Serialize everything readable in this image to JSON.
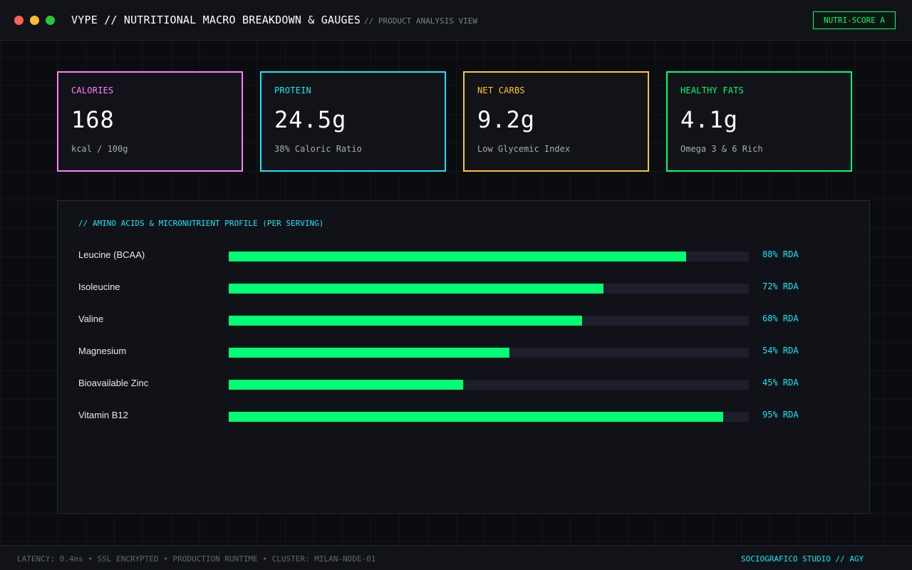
{
  "window": {
    "title": "VYPE // NUTRITIONAL MACRO BREAKDOWN & GAUGES",
    "subtitle": "// PRODUCT ANALYSIS VIEW",
    "badge": "NUTRI-SCORE A",
    "controls": [
      "close-icon",
      "minimize-icon",
      "maximize-icon"
    ]
  },
  "colors": {
    "calories": "#ff80ff",
    "protein": "#18e8f4",
    "net_carbs": "#ffc629",
    "healthy_fats": "#00ff73",
    "bar_fill": "#00ff73",
    "accent": "#18e8f4"
  },
  "macros": [
    {
      "label": "CALORIES",
      "value": "168",
      "note": "kcal / 100g"
    },
    {
      "label": "PROTEIN",
      "value": "24.5g",
      "note": "38% Caloric Ratio"
    },
    {
      "label": "NET CARBS",
      "value": "9.2g",
      "note": "Low Glycemic Index"
    },
    {
      "label": "HEALTHY FATS",
      "value": "4.1g",
      "note": "Omega 3 & 6 Rich"
    }
  ],
  "profile": {
    "title": "// AMINO ACIDS & MICRONUTRIENT PROFILE (PER SERVING)",
    "items": [
      {
        "name": "Leucine (BCAA)",
        "percent": 88,
        "label": "88% RDA"
      },
      {
        "name": "Isoleucine",
        "percent": 72,
        "label": "72% RDA"
      },
      {
        "name": "Valine",
        "percent": 68,
        "label": "68% RDA"
      },
      {
        "name": "Magnesium",
        "percent": 54,
        "label": "54% RDA"
      },
      {
        "name": "Bioavailable Zinc",
        "percent": 45,
        "label": "45% RDA"
      },
      {
        "name": "Vitamin B12",
        "percent": 95,
        "label": "95% RDA"
      }
    ]
  },
  "footer": {
    "status": "LATENCY: 0.4ms • SSL ENCRYPTED • PRODUCTION RUNTIME • CLUSTER: MILAN-NODE-01",
    "credit": "SOCIOGRAFICO STUDIO // AGY"
  }
}
